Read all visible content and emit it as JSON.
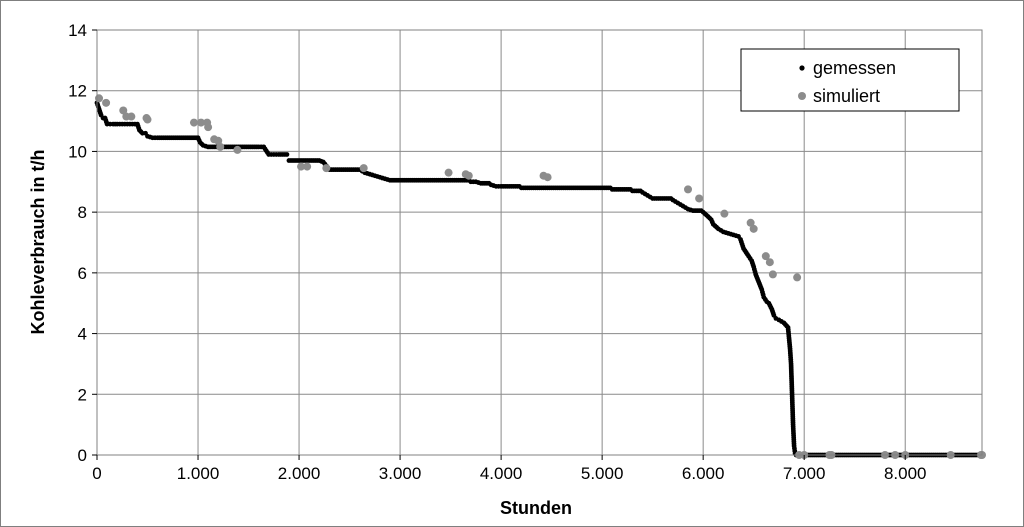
{
  "chart_data": {
    "type": "scatter",
    "xlabel": "Stunden",
    "ylabel": "Kohleverbrauch in t/h",
    "xlim": [
      0,
      8760
    ],
    "ylim": [
      0,
      14
    ],
    "x_ticks": [
      0,
      1000,
      2000,
      3000,
      4000,
      5000,
      6000,
      7000,
      8000
    ],
    "x_tick_labels": [
      "0",
      "1.000",
      "2.000",
      "3.000",
      "4.000",
      "5.000",
      "6.000",
      "7.000",
      "8.000"
    ],
    "y_ticks": [
      0,
      2,
      4,
      6,
      8,
      10,
      12,
      14
    ],
    "y_tick_labels": [
      "0",
      "2",
      "4",
      "6",
      "8",
      "10",
      "12",
      "14"
    ],
    "grid": true,
    "legend_position": "top-right",
    "colors": {
      "gemessen": "#000000",
      "simuliert": "#8c8c8c"
    },
    "series": [
      {
        "name": "gemessen",
        "marker": "small-dot",
        "x": [
          0,
          20,
          40,
          60,
          80,
          100,
          130,
          160,
          200,
          250,
          300,
          350,
          400,
          420,
          450,
          480,
          500,
          550,
          600,
          700,
          800,
          900,
          1000,
          1020,
          1050,
          1100,
          1200,
          1300,
          1400,
          1500,
          1600,
          1650,
          1700,
          1750,
          1800,
          1900,
          2000,
          2100,
          2200,
          2240,
          2300,
          2400,
          2500,
          2600,
          2650,
          2700,
          2750,
          2800,
          2850,
          2900,
          3000,
          3200,
          3400,
          3600,
          3700,
          3750,
          3800,
          3900,
          3950,
          4000,
          4100,
          4200,
          4300,
          4400,
          4500,
          4600,
          4800,
          5000,
          5100,
          5200,
          5300,
          5400,
          5450,
          5500,
          5600,
          5700,
          5750,
          5800,
          5850,
          5900,
          6000,
          6050,
          6080,
          6100,
          6150,
          6200,
          6250,
          6300,
          6350,
          6370,
          6400,
          6450,
          6480,
          6500,
          6520,
          6550,
          6580,
          6600,
          6630,
          6650,
          6680,
          6700,
          6720,
          6750,
          6800,
          6840,
          6860,
          6870,
          6880,
          6890,
          6900,
          6910,
          6920,
          6950,
          7000,
          7500,
          8000,
          8500,
          8760
        ],
        "y": [
          11.6,
          11.4,
          11.2,
          11.1,
          11.1,
          10.9,
          10.9,
          10.9,
          10.9,
          10.9,
          10.9,
          10.9,
          10.9,
          10.7,
          10.6,
          10.6,
          10.5,
          10.45,
          10.45,
          10.45,
          10.45,
          10.45,
          10.45,
          10.3,
          10.2,
          10.15,
          10.15,
          10.15,
          10.15,
          10.15,
          10.15,
          10.15,
          9.9,
          9.9,
          9.9,
          9.7,
          9.7,
          9.7,
          9.7,
          9.65,
          9.4,
          9.4,
          9.4,
          9.4,
          9.3,
          9.25,
          9.2,
          9.15,
          9.1,
          9.05,
          9.05,
          9.05,
          9.05,
          9.05,
          9.0,
          9.0,
          8.95,
          8.9,
          8.85,
          8.85,
          8.85,
          8.8,
          8.8,
          8.8,
          8.8,
          8.8,
          8.8,
          8.8,
          8.75,
          8.75,
          8.7,
          8.65,
          8.55,
          8.45,
          8.45,
          8.4,
          8.3,
          8.2,
          8.1,
          8.05,
          8.0,
          7.85,
          7.75,
          7.6,
          7.45,
          7.35,
          7.3,
          7.25,
          7.2,
          7.1,
          6.8,
          6.55,
          6.4,
          6.2,
          5.95,
          5.7,
          5.45,
          5.2,
          5.05,
          5.0,
          4.8,
          4.6,
          4.5,
          4.45,
          4.35,
          4.2,
          3.5,
          3.0,
          2.0,
          1.0,
          0.3,
          0.05,
          0,
          0,
          0,
          0,
          0,
          0,
          0
        ]
      },
      {
        "name": "simuliert",
        "marker": "dot",
        "x": [
          20,
          90,
          260,
          290,
          340,
          490,
          500,
          960,
          1030,
          1090,
          1100,
          1160,
          1200,
          1220,
          1390,
          2020,
          2080,
          2270,
          2640,
          3480,
          3650,
          3680,
          4420,
          4460,
          5850,
          5960,
          6210,
          6470,
          6500,
          6620,
          6660,
          6690,
          6930,
          6950,
          7000,
          7250,
          7270,
          7800,
          7900,
          8000,
          8450,
          8750,
          8760
        ],
        "y": [
          11.75,
          11.6,
          11.35,
          11.15,
          11.15,
          11.1,
          11.05,
          10.95,
          10.95,
          10.95,
          10.8,
          10.4,
          10.35,
          10.15,
          10.05,
          9.5,
          9.5,
          9.45,
          9.45,
          9.3,
          9.25,
          9.2,
          9.2,
          9.15,
          8.75,
          8.45,
          7.95,
          7.65,
          7.45,
          6.55,
          6.35,
          5.95,
          5.85,
          0,
          0,
          0,
          0,
          0,
          0,
          0,
          0,
          0,
          0
        ]
      }
    ]
  }
}
